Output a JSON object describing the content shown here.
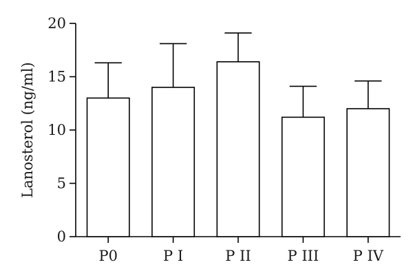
{
  "chart_data": {
    "type": "bar",
    "title": "",
    "xlabel": "",
    "ylabel": "Lanosterol (ng/ml)",
    "ylim": [
      0,
      20
    ],
    "yticks": [
      0,
      5,
      10,
      15,
      20
    ],
    "categories": [
      "P0",
      "P I",
      "P II",
      "P III",
      "P IV"
    ],
    "series": [
      {
        "values": [
          13.0,
          14.0,
          16.4,
          11.2,
          12.0
        ],
        "error_upper": [
          3.3,
          4.1,
          2.7,
          2.9,
          2.6
        ]
      }
    ],
    "grid": false,
    "legend": "none",
    "colors": {
      "bar_fill": "#ffffff",
      "bar_stroke": "#000000"
    }
  }
}
